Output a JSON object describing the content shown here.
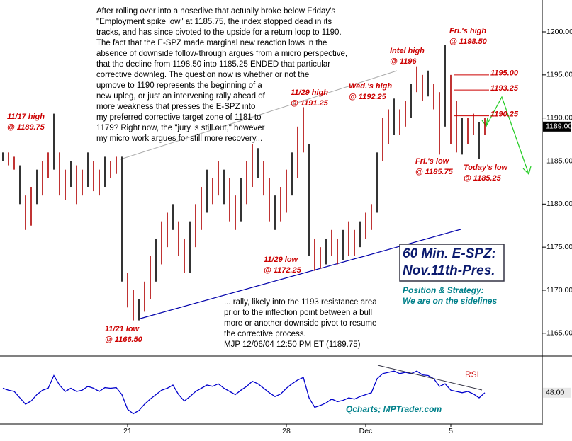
{
  "chart_data": {
    "type": "range-bar",
    "color": "#b00000",
    "categories": [
      null,
      null,
      null,
      null,
      null,
      null,
      null,
      null,
      null,
      null,
      null,
      null,
      null,
      null,
      null,
      null,
      null,
      null,
      null,
      null,
      null,
      null,
      "21",
      null,
      null,
      null,
      null,
      null,
      null,
      null,
      null,
      null,
      null,
      null,
      null,
      null,
      null,
      null,
      null,
      null,
      null,
      null,
      null,
      null,
      null,
      null,
      null,
      null,
      null,
      null,
      "28",
      null,
      null,
      null,
      null,
      null,
      null,
      null,
      null,
      null,
      null,
      null,
      null,
      null,
      "Dec",
      null,
      null,
      null,
      null,
      null,
      null,
      null,
      null,
      null,
      null,
      null,
      null,
      null,
      null,
      "5",
      null,
      null,
      null,
      null,
      null,
      null
    ],
    "highs": [
      1186,
      1186,
      1185.5,
      1184.5,
      1181,
      1182,
      1184,
      1185,
      1186,
      1190.5,
      1186,
      1184,
      1185,
      1184.5,
      1184,
      1186,
      1185,
      1184,
      1185.5,
      1185,
      1185.5,
      1185.5,
      1172,
      1170,
      1169,
      1171,
      1174,
      1176,
      1178,
      1179,
      1180,
      1178,
      1176,
      1178,
      1180,
      1182,
      1184,
      1183,
      1185,
      1184,
      1183,
      1181,
      1183,
      1185,
      1187,
      1186.5,
      1185,
      1183,
      1181,
      1182,
      1184,
      1186,
      1189,
      1191.25,
      1187,
      1176,
      1175,
      1176,
      1177,
      1176,
      1177,
      1178,
      1177,
      1178,
      1179,
      1180,
      1186,
      1190,
      1191,
      1192.25,
      1191,
      1192,
      1194,
      1196,
      1195,
      1195.5,
      1194,
      1193,
      1198.5,
      1195,
      1192,
      1190,
      1190,
      1190.5,
      1189.5,
      1190
    ],
    "lows": [
      1185,
      1184.5,
      1184,
      1180,
      1177,
      1177.5,
      1180,
      1181,
      1183,
      1184,
      1181,
      1180.5,
      1182,
      1180,
      1181,
      1182,
      1181.5,
      1181,
      1182,
      1183,
      1183.5,
      1171,
      1168,
      1166.5,
      1166.5,
      1167.5,
      1169,
      1171,
      1173,
      1175,
      1177,
      1174,
      1172,
      1172,
      1175,
      1177,
      1179,
      1180,
      1181,
      1180,
      1178,
      1177,
      1178,
      1180,
      1182,
      1183,
      1181,
      1178,
      1177,
      1178,
      1179,
      1181,
      1183,
      1186,
      1174,
      1172.25,
      1172.5,
      1173,
      1174,
      1173,
      1173.5,
      1174,
      1174,
      1175,
      1176,
      1177,
      1179,
      1185,
      1187,
      1188,
      1188,
      1189,
      1190,
      1193,
      1192,
      1192.5,
      1191,
      1185.75,
      1189,
      1187,
      1186,
      1185.75,
      1187,
      1188,
      1185.25,
      1188
    ],
    "ylim": [
      1162.6,
      1203.7
    ],
    "yticks": [
      {
        "value": 1165,
        "label": "1165.00"
      },
      {
        "value": 1170,
        "label": "1170.00"
      },
      {
        "value": 1175,
        "label": "1175.00"
      },
      {
        "value": 1180,
        "label": "1180.00"
      },
      {
        "value": 1185,
        "label": "1185.00"
      },
      {
        "value": 1190,
        "label": "1190.00"
      },
      {
        "value": 1195,
        "label": "1195.00"
      },
      {
        "value": 1200,
        "label": "1200.00"
      }
    ],
    "last_price": {
      "value": 1189,
      "label": "1189.00"
    },
    "levels": [
      {
        "value": 1195,
        "label": "1195.00"
      },
      {
        "value": 1193.25,
        "label": "1193.25"
      },
      {
        "value": 1190.25,
        "label": "1190.25"
      }
    ],
    "rsi": {
      "name": "RSI",
      "color": "#0000cc",
      "ylim": [
        0,
        100
      ],
      "last": {
        "value": 48,
        "label": "48.00"
      },
      "values": [
        55,
        52,
        50,
        40,
        30,
        35,
        45,
        52,
        55,
        75,
        60,
        50,
        55,
        50,
        52,
        58,
        55,
        50,
        56,
        55,
        56,
        45,
        22,
        15,
        20,
        30,
        38,
        45,
        52,
        55,
        60,
        45,
        35,
        42,
        50,
        55,
        60,
        58,
        62,
        55,
        50,
        45,
        52,
        58,
        66,
        62,
        55,
        48,
        42,
        46,
        55,
        62,
        68,
        72,
        40,
        25,
        28,
        32,
        38,
        34,
        36,
        40,
        38,
        42,
        45,
        48,
        70,
        78,
        80,
        82,
        78,
        80,
        78,
        82,
        76,
        75,
        70,
        58,
        62,
        52,
        50,
        48,
        50,
        46,
        40,
        48
      ]
    },
    "annotations": [
      [
        "11/17 high",
        "@ 1189.75"
      ],
      [
        "11/21 low",
        "@ 1166.50"
      ],
      [
        "11/29 low",
        "@ 1172.25"
      ],
      [
        "11/29 high",
        "@ 1191.25"
      ],
      [
        "Wed.'s high",
        "@ 1192.25"
      ],
      [
        "Intel high",
        "@ 1196"
      ],
      [
        "Fri.'s high",
        "@ 1198.50"
      ],
      [
        "Fri.'s low",
        "@ 1185.75"
      ],
      [
        "Today's low",
        "@ 1185.25"
      ]
    ],
    "commentary": [
      "After rolling over into a nosedive that actually broke below Friday's",
      "\"Employment spike low\" at 1185.75, the index stopped dead in its",
      "tracks, and has since pivoted to the upside for a return loop to 1190.",
      "The fact that the E-SPZ made marginal new reaction lows in the",
      "absence of downside follow-through argues from a micro perspective,",
      "that the decline from 1198.50 into 1185.25 ENDED that particular",
      "corrective downleg. The question now is whether or not the",
      "upmove to 1190 represents the beginning of a",
      "new upleg, or just an intervening rally ahead of",
      "more weakness that presses the E-SPZ into",
      "my preferred corrective target zone of 1181 to",
      "1179? Right now, the \"jury is still out,\" however",
      "my micro work argues for still more recovery..."
    ],
    "commentary_end": [
      "... rally, likely into the 1193 resistance area",
      "prior to the inflection point between a bull",
      "more or another downside pivot to resume",
      "the corrective process.",
      "MJP 12/06/04 12:50 PM ET (1189.75)"
    ],
    "chart_title": [
      "60 Min. E-SPZ:",
      "Nov.11th-Pres."
    ],
    "strategy": [
      "Position & Strategy:",
      "We are on the sidelines"
    ],
    "credit": "Qcharts; MPTrader.com"
  }
}
